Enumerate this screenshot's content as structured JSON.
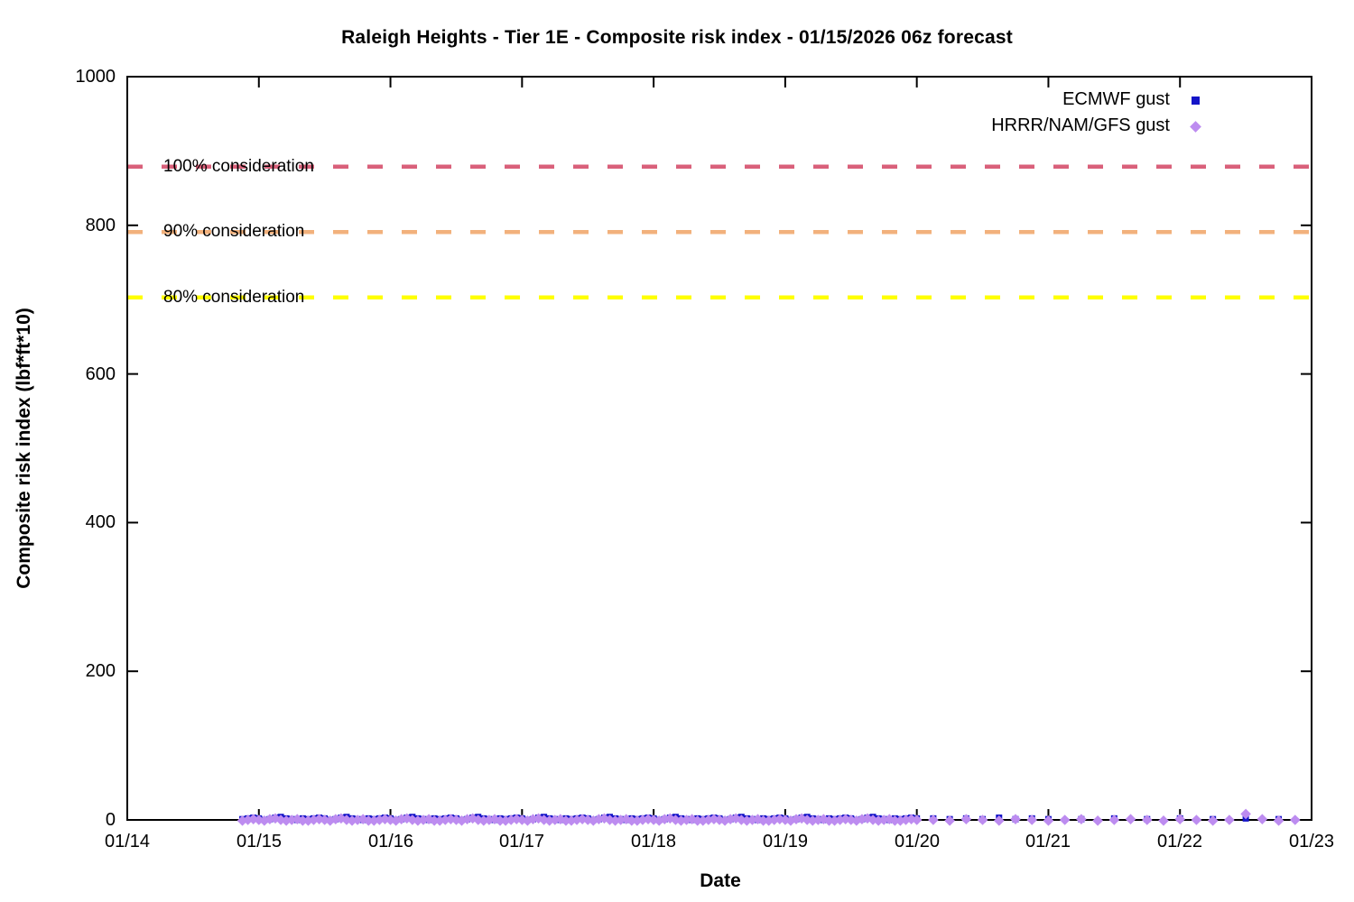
{
  "chart_data": {
    "type": "scatter",
    "title": "Raleigh Heights - Tier 1E - Composite risk index - 01/15/2026 06z forecast",
    "xlabel": "Date",
    "ylabel": "Composite risk index (lbf*ft*10)",
    "ylim": [
      0,
      1000
    ],
    "xlim_days": [
      0,
      9
    ],
    "grid": false,
    "legend_position": "top-right",
    "axis_color": "#000000",
    "background_color": "#ffffff",
    "x_ticks": [
      "01/14",
      "01/15",
      "01/16",
      "01/17",
      "01/18",
      "01/19",
      "01/20",
      "01/21",
      "01/22",
      "01/23"
    ],
    "y_ticks": [
      0,
      200,
      400,
      600,
      800,
      1000
    ],
    "thresholds": [
      {
        "label": "100% consideration",
        "value": 879,
        "color": "#d9607a"
      },
      {
        "label": "90% consideration",
        "value": 791,
        "color": "#f2b17c"
      },
      {
        "label": "80% consideration",
        "value": 703,
        "color": "#ffff00"
      }
    ],
    "series": [
      {
        "name": "ECMWF gust",
        "marker": "square",
        "color": "#1414c8",
        "segments": [
          {
            "start_day": 0.875,
            "step_days": 0.0416667,
            "values": [
              1,
              2,
              3,
              2,
              0,
              1,
              3,
              4,
              2,
              1,
              0,
              2,
              1,
              2,
              3,
              2,
              0,
              1,
              3,
              4,
              2,
              1,
              0,
              2,
              1,
              2,
              3,
              2,
              0,
              1,
              3,
              4,
              2,
              1,
              0,
              2,
              1,
              2,
              3,
              2,
              0,
              1,
              3,
              4,
              2,
              1,
              0,
              2,
              1,
              2,
              3,
              2,
              0,
              1,
              3,
              4,
              2,
              1,
              0,
              2,
              1,
              2,
              3,
              2,
              0,
              1,
              3,
              4,
              2,
              1,
              0,
              2,
              1,
              2,
              3,
              2,
              0,
              1,
              3,
              4,
              2,
              1,
              0,
              2,
              1,
              2,
              3,
              2,
              0,
              1,
              3,
              4,
              2,
              1,
              0,
              2,
              1,
              2,
              3,
              2,
              0,
              1,
              3,
              4,
              2,
              1,
              0,
              2,
              1,
              2,
              3,
              2,
              0,
              1,
              3,
              4,
              2,
              1,
              0,
              2,
              1,
              2,
              3,
              2
            ]
          },
          {
            "start_day": 6.125,
            "step_days": 0.125,
            "values": [
              2,
              1,
              2,
              1,
              3,
              1,
              2,
              1
            ]
          },
          {
            "start_day": 7.25,
            "step_days": 0.25,
            "values": [
              1,
              2,
              1,
              2,
              1,
              2,
              1
            ]
          }
        ]
      },
      {
        "name": "HRRR/NAM/GFS gust",
        "marker": "diamond",
        "color": "#bd8cf0",
        "segments": [
          {
            "start_day": 0.875,
            "step_days": 0.0416667,
            "values": [
              -1,
              0,
              1,
              0,
              -1,
              1,
              2,
              0,
              -1,
              0,
              1,
              -1,
              -1,
              0,
              1,
              0,
              -1,
              1,
              2,
              0,
              -1,
              0,
              1,
              -1,
              -1,
              0,
              1,
              0,
              -1,
              1,
              2,
              0,
              -1,
              0,
              1,
              -1,
              -1,
              0,
              1,
              0,
              -1,
              1,
              2,
              0,
              -1,
              0,
              1,
              -1,
              -1,
              0,
              1,
              0,
              -1,
              1,
              2,
              0,
              -1,
              0,
              1,
              -1,
              -1,
              0,
              1,
              0,
              -1,
              1,
              2,
              0,
              -1,
              0,
              1,
              -1,
              -1,
              0,
              1,
              0,
              -1,
              1,
              2,
              0,
              -1,
              0,
              1,
              -1,
              -1,
              0,
              1,
              0,
              -1,
              1,
              2,
              0,
              -1,
              0,
              1,
              -1,
              -1,
              0,
              1,
              0,
              -1,
              1,
              2,
              0,
              -1,
              0,
              1,
              -1,
              -1,
              0,
              1,
              0,
              -1,
              1,
              2,
              0,
              -1,
              0,
              1,
              -1,
              -1,
              0,
              1,
              0
            ]
          },
          {
            "start_day": 6.125,
            "step_days": 0.125,
            "values": [
              0,
              -1,
              1,
              0,
              -1,
              1,
              0,
              -1,
              0,
              1,
              -1,
              0,
              1,
              0,
              -1,
              1,
              0,
              -1,
              0,
              8,
              1,
              -1,
              0
            ]
          }
        ]
      }
    ]
  }
}
